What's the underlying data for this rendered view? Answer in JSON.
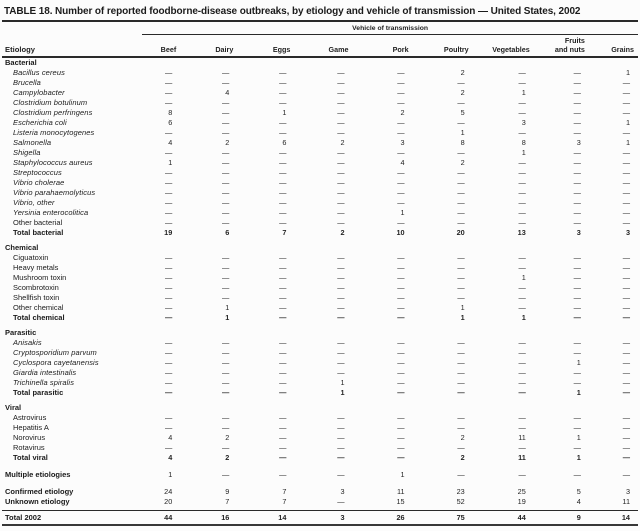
{
  "title": "TABLE 18. Number of reported foodborne-disease outbreaks, by etiology and vehicle of transmission — United States, 2002",
  "table": {
    "span_header": "Vehicle of transmission",
    "etiology_header": "Etiology",
    "columns": [
      "Beef",
      "Dairy",
      "Eggs",
      "Game",
      "Pork",
      "Poultry",
      "Vegetables",
      "Fruits\nand nuts",
      "Grains"
    ],
    "empty_marker": "—",
    "sections": [
      {
        "label": "Bacterial",
        "rows": [
          {
            "name": "Bacillus cereus",
            "italic": true,
            "values": [
              null,
              null,
              null,
              null,
              null,
              2,
              null,
              null,
              1
            ]
          },
          {
            "name": "Brucella",
            "italic": true,
            "values": [
              null,
              null,
              null,
              null,
              null,
              null,
              null,
              null,
              null
            ]
          },
          {
            "name": "Campylobacter",
            "italic": true,
            "values": [
              null,
              4,
              null,
              null,
              null,
              2,
              1,
              null,
              null
            ]
          },
          {
            "name": "Clostridium botulinum",
            "italic": true,
            "values": [
              null,
              null,
              null,
              null,
              null,
              null,
              null,
              null,
              null
            ]
          },
          {
            "name": "Clostridium perfringens",
            "italic": true,
            "values": [
              8,
              null,
              1,
              null,
              2,
              5,
              null,
              null,
              null
            ]
          },
          {
            "name": "Escherichia coli",
            "italic": true,
            "values": [
              6,
              null,
              null,
              null,
              null,
              null,
              3,
              null,
              1
            ]
          },
          {
            "name": "Listeria monocytogenes",
            "italic": true,
            "values": [
              null,
              null,
              null,
              null,
              null,
              1,
              null,
              null,
              null
            ]
          },
          {
            "name": "Salmonella",
            "italic": true,
            "values": [
              4,
              2,
              6,
              2,
              3,
              8,
              8,
              3,
              1
            ]
          },
          {
            "name": "Shigella",
            "italic": true,
            "values": [
              null,
              null,
              null,
              null,
              null,
              null,
              1,
              null,
              null
            ]
          },
          {
            "name": "Staphylococcus aureus",
            "italic": true,
            "values": [
              1,
              null,
              null,
              null,
              4,
              2,
              null,
              null,
              null
            ]
          },
          {
            "name": "Streptococcus",
            "italic": true,
            "values": [
              null,
              null,
              null,
              null,
              null,
              null,
              null,
              null,
              null
            ]
          },
          {
            "name": "Vibrio cholerae",
            "italic": true,
            "values": [
              null,
              null,
              null,
              null,
              null,
              null,
              null,
              null,
              null
            ]
          },
          {
            "name": "Vibrio parahaemolyticus",
            "italic": true,
            "values": [
              null,
              null,
              null,
              null,
              null,
              null,
              null,
              null,
              null
            ]
          },
          {
            "name": "Vibrio, other",
            "italic": true,
            "values": [
              null,
              null,
              null,
              null,
              null,
              null,
              null,
              null,
              null
            ]
          },
          {
            "name": "Yersinia enterocolitica",
            "italic": true,
            "values": [
              null,
              null,
              null,
              null,
              1,
              null,
              null,
              null,
              null
            ]
          },
          {
            "name": "Other bacterial",
            "italic": false,
            "values": [
              null,
              null,
              null,
              null,
              null,
              null,
              null,
              null,
              null
            ]
          }
        ],
        "total": {
          "name": "Total bacterial",
          "values": [
            19,
            6,
            7,
            2,
            10,
            20,
            13,
            3,
            3
          ]
        }
      },
      {
        "label": "Chemical",
        "rows": [
          {
            "name": "Ciguatoxin",
            "italic": false,
            "values": [
              null,
              null,
              null,
              null,
              null,
              null,
              null,
              null,
              null
            ]
          },
          {
            "name": "Heavy metals",
            "italic": false,
            "values": [
              null,
              null,
              null,
              null,
              null,
              null,
              null,
              null,
              null
            ]
          },
          {
            "name": "Mushroom toxin",
            "italic": false,
            "values": [
              null,
              null,
              null,
              null,
              null,
              null,
              1,
              null,
              null
            ]
          },
          {
            "name": "Scombrotoxin",
            "italic": false,
            "values": [
              null,
              null,
              null,
              null,
              null,
              null,
              null,
              null,
              null
            ]
          },
          {
            "name": "Shellfish toxin",
            "italic": false,
            "values": [
              null,
              null,
              null,
              null,
              null,
              null,
              null,
              null,
              null
            ]
          },
          {
            "name": "Other chemical",
            "italic": false,
            "values": [
              null,
              1,
              null,
              null,
              null,
              1,
              null,
              null,
              null
            ]
          }
        ],
        "total": {
          "name": "Total chemical",
          "values": [
            null,
            1,
            null,
            null,
            null,
            1,
            1,
            null,
            null
          ]
        }
      },
      {
        "label": "Parasitic",
        "rows": [
          {
            "name": "Anisakis",
            "italic": true,
            "values": [
              null,
              null,
              null,
              null,
              null,
              null,
              null,
              null,
              null
            ]
          },
          {
            "name": "Cryptosporidium parvum",
            "italic": true,
            "values": [
              null,
              null,
              null,
              null,
              null,
              null,
              null,
              null,
              null
            ]
          },
          {
            "name": "Cyclospora cayetanensis",
            "italic": true,
            "values": [
              null,
              null,
              null,
              null,
              null,
              null,
              null,
              1,
              null
            ]
          },
          {
            "name": "Giardia intestinalis",
            "italic": true,
            "values": [
              null,
              null,
              null,
              null,
              null,
              null,
              null,
              null,
              null
            ]
          },
          {
            "name": "Trichinella spiralis",
            "italic": true,
            "values": [
              null,
              null,
              null,
              1,
              null,
              null,
              null,
              null,
              null
            ]
          }
        ],
        "total": {
          "name": "Total parasitic",
          "values": [
            null,
            null,
            null,
            1,
            null,
            null,
            null,
            1,
            null
          ]
        }
      },
      {
        "label": "Viral",
        "rows": [
          {
            "name": "Astrovirus",
            "italic": false,
            "values": [
              null,
              null,
              null,
              null,
              null,
              null,
              null,
              null,
              null
            ]
          },
          {
            "name": "Hepatitis A",
            "italic": false,
            "values": [
              null,
              null,
              null,
              null,
              null,
              null,
              null,
              null,
              null
            ]
          },
          {
            "name": "Norovirus",
            "italic": false,
            "values": [
              4,
              2,
              null,
              null,
              null,
              2,
              11,
              1,
              null
            ]
          },
          {
            "name": "Rotavirus",
            "italic": false,
            "values": [
              null,
              null,
              null,
              null,
              null,
              null,
              null,
              null,
              null
            ]
          }
        ],
        "total": {
          "name": "Total viral",
          "values": [
            4,
            2,
            null,
            null,
            null,
            2,
            11,
            1,
            null
          ]
        }
      }
    ],
    "summary_rows": [
      {
        "name": "Multiple etiologies",
        "values": [
          1,
          null,
          null,
          null,
          1,
          null,
          null,
          null,
          null
        ],
        "gap_before": "lg",
        "bold_nums": false,
        "grand": false
      },
      {
        "name": "Confirmed etiology",
        "values": [
          24,
          9,
          7,
          3,
          11,
          23,
          25,
          5,
          3
        ],
        "gap_before": "lg",
        "bold_nums": false,
        "grand": false
      },
      {
        "name": "Unknown etiology",
        "values": [
          20,
          7,
          7,
          null,
          15,
          52,
          19,
          4,
          11
        ],
        "gap_before": null,
        "bold_nums": false,
        "grand": false
      },
      {
        "name": "Total 2002",
        "values": [
          44,
          16,
          14,
          3,
          26,
          75,
          44,
          9,
          14
        ],
        "gap_before": "sm",
        "bold_nums": true,
        "grand": true
      }
    ]
  }
}
